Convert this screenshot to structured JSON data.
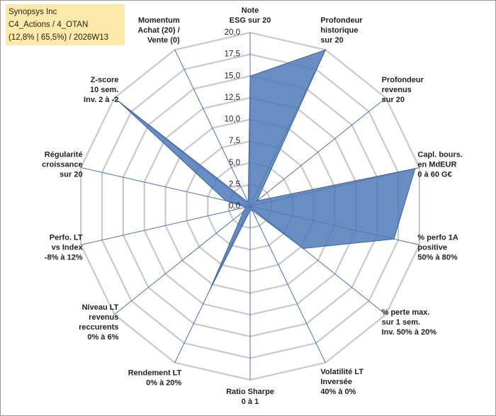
{
  "chart_data": {
    "type": "radar",
    "title": [
      "Synopsys Inc",
      "C4_Actions / 4_OTAN",
      "(12,8% | 65,5%) / 2026W13"
    ],
    "categories": [
      "Note\nESG sur 20",
      "Profondeur\nhistorique\nsur 20",
      "Profondeur\nrevenus\nsur 20",
      "Capl. bours.\nen MdEUR\n0 à 60 G€",
      "% perfo 1A\npositive\n50% à 80%",
      "% perte max.\nsur 1 sem.\nInv. 50% à 20%",
      "Volatilité LT\nInversée\n40% à 0%",
      "Ratio Sharpe\n0 à 1",
      "Rendement LT\n0% à 20%",
      "Niveau LT\nrevenus\nreccurents\n0% à 6%",
      "Perfo. LT\nvs Index\n-8% à 12%",
      "Régularité\ncroissance\nsur 20",
      "Z-score\n10 sem.\nInv. 2 à -2",
      "Momentum\nAchat (20) /\nVente (0)"
    ],
    "values": [
      15,
      20,
      1,
      19.5,
      17,
      7.8,
      0.5,
      0.5,
      10.8,
      1,
      0.5,
      2.9,
      19.4,
      0.5
    ],
    "color": "#4f7ab8",
    "ylim": [
      0,
      20
    ],
    "yticks": [
      {
        "value": 0,
        "label": "0,0"
      },
      {
        "value": 2.5,
        "label": "2,5"
      },
      {
        "value": 5,
        "label": "5,0"
      },
      {
        "value": 7.5,
        "label": "7,5"
      },
      {
        "value": 10,
        "label": "10,0"
      },
      {
        "value": 12.5,
        "label": "12,5"
      },
      {
        "value": 15,
        "label": "15,0"
      },
      {
        "value": 17.5,
        "label": "17,5"
      },
      {
        "value": 20,
        "label": "20,0"
      }
    ],
    "grid": true
  }
}
